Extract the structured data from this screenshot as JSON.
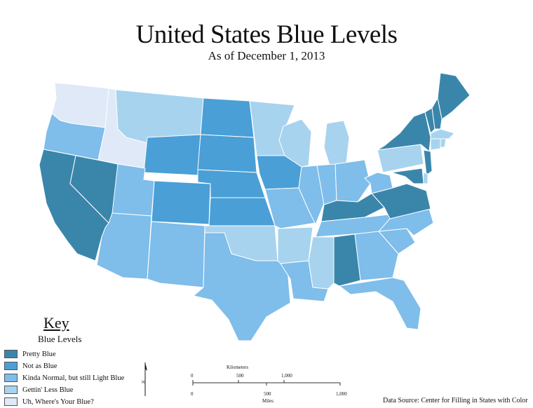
{
  "title": "United States Blue Levels",
  "subtitle": "As of December 1, 2013",
  "colors": {
    "pretty_blue": "#3a86ab",
    "not_as_blue": "#4a9fd6",
    "kinda_normal": "#7fbdea",
    "gettin_less": "#a7d3ef",
    "uh_wheres": "#dfe9f7",
    "border": "#ffffff"
  },
  "key": {
    "title": "Key",
    "subtitle": "Blue Levels",
    "items": [
      {
        "label": "Pretty Blue",
        "color": "#3a86ab"
      },
      {
        "label": "Not as Blue",
        "color": "#4a9fd6"
      },
      {
        "label": "Kinda Normal, but still Light Blue",
        "color": "#7fbdea"
      },
      {
        "label": "Gettin' Less Blue",
        "color": "#a7d3ef"
      },
      {
        "label": "Uh, Where's Your Blue?",
        "color": "#dfe9f7"
      }
    ]
  },
  "scale_bar": {
    "top_unit": "Kilometers",
    "top_ticks": [
      "0",
      "500",
      "1,000"
    ],
    "bottom_unit": "Miles",
    "bottom_ticks": [
      "0",
      "500",
      "1,000"
    ]
  },
  "north_arrow_label": "N",
  "source": "Data Source: Center for Filling in States with Color",
  "states": [
    {
      "name": "Washington",
      "level": "uh_wheres"
    },
    {
      "name": "Oregon",
      "level": "kinda_normal"
    },
    {
      "name": "California",
      "level": "pretty_blue"
    },
    {
      "name": "Nevada",
      "level": "pretty_blue"
    },
    {
      "name": "Idaho",
      "level": "uh_wheres"
    },
    {
      "name": "Montana",
      "level": "gettin_less"
    },
    {
      "name": "Wyoming",
      "level": "not_as_blue"
    },
    {
      "name": "Utah",
      "level": "kinda_normal"
    },
    {
      "name": "Arizona",
      "level": "kinda_normal"
    },
    {
      "name": "Colorado",
      "level": "not_as_blue"
    },
    {
      "name": "New Mexico",
      "level": "kinda_normal"
    },
    {
      "name": "North Dakota",
      "level": "not_as_blue"
    },
    {
      "name": "South Dakota",
      "level": "not_as_blue"
    },
    {
      "name": "Nebraska",
      "level": "not_as_blue"
    },
    {
      "name": "Kansas",
      "level": "not_as_blue"
    },
    {
      "name": "Oklahoma",
      "level": "gettin_less"
    },
    {
      "name": "Texas",
      "level": "kinda_normal"
    },
    {
      "name": "Minnesota",
      "level": "gettin_less"
    },
    {
      "name": "Iowa",
      "level": "not_as_blue"
    },
    {
      "name": "Missouri",
      "level": "kinda_normal"
    },
    {
      "name": "Arkansas",
      "level": "gettin_less"
    },
    {
      "name": "Louisiana",
      "level": "kinda_normal"
    },
    {
      "name": "Wisconsin",
      "level": "gettin_less"
    },
    {
      "name": "Illinois",
      "level": "kinda_normal"
    },
    {
      "name": "Michigan",
      "level": "gettin_less"
    },
    {
      "name": "Indiana",
      "level": "kinda_normal"
    },
    {
      "name": "Ohio",
      "level": "kinda_normal"
    },
    {
      "name": "Kentucky",
      "level": "pretty_blue"
    },
    {
      "name": "Tennessee",
      "level": "kinda_normal"
    },
    {
      "name": "Mississippi",
      "level": "gettin_less"
    },
    {
      "name": "Alabama",
      "level": "pretty_blue"
    },
    {
      "name": "Georgia",
      "level": "kinda_normal"
    },
    {
      "name": "Florida",
      "level": "kinda_normal"
    },
    {
      "name": "South Carolina",
      "level": "kinda_normal"
    },
    {
      "name": "North Carolina",
      "level": "kinda_normal"
    },
    {
      "name": "Virginia",
      "level": "pretty_blue"
    },
    {
      "name": "West Virginia",
      "level": "kinda_normal"
    },
    {
      "name": "Pennsylvania",
      "level": "gettin_less"
    },
    {
      "name": "New York",
      "level": "pretty_blue"
    },
    {
      "name": "Maine",
      "level": "pretty_blue"
    },
    {
      "name": "Vermont",
      "level": "pretty_blue"
    },
    {
      "name": "New Hampshire",
      "level": "pretty_blue"
    },
    {
      "name": "Massachusetts",
      "level": "gettin_less"
    },
    {
      "name": "Connecticut",
      "level": "gettin_less"
    },
    {
      "name": "Rhode Island",
      "level": "gettin_less"
    },
    {
      "name": "New Jersey",
      "level": "pretty_blue"
    },
    {
      "name": "Delaware",
      "level": "gettin_less"
    },
    {
      "name": "Maryland",
      "level": "pretty_blue"
    }
  ]
}
